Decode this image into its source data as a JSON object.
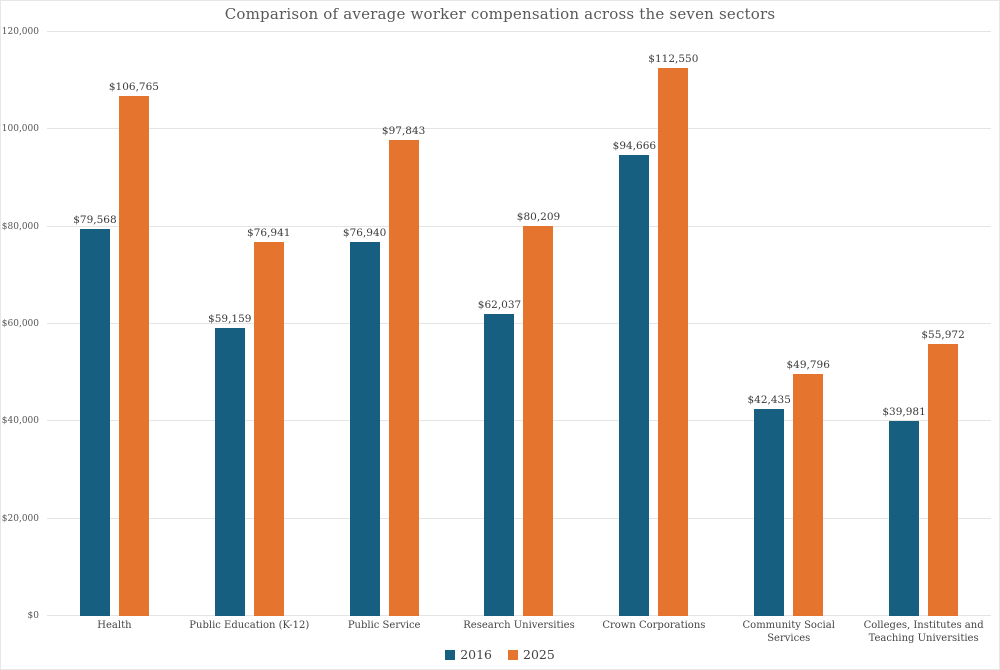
{
  "title": "Comparison of average worker compensation across the seven sectors",
  "colors": {
    "series_2016": "#175f80",
    "series_2025": "#e5742e",
    "gridline": "#e4e4e4",
    "title_text": "#595959",
    "axis_text": "#565656",
    "value_label_text": "#3a3a3a",
    "category_text": "#444444",
    "background": "#ffffff",
    "border": "#e7e7e7"
  },
  "chart_data": {
    "type": "bar",
    "title": "Comparison of average worker compensation across the seven sectors",
    "categories": [
      "Health",
      "Public Education (K-12)",
      "Public Service",
      "Research Universities",
      "Crown Corporations",
      "Community Social Services",
      "Colleges, Institutes and Teaching Universities"
    ],
    "series": [
      {
        "name": "2016",
        "color": "#175f80",
        "values": [
          79568,
          59159,
          76940,
          62037,
          94666,
          42435,
          39981
        ],
        "labels": [
          "$79,568",
          "$59,159",
          "$76,940",
          "$62,037",
          "$94,666",
          "$42,435",
          "$39,981"
        ]
      },
      {
        "name": "2025",
        "color": "#e5742e",
        "values": [
          106765,
          76941,
          97843,
          80209,
          112550,
          49796,
          55972
        ],
        "labels": [
          "$106,765",
          "$76,941",
          "$97,843",
          "$80,209",
          "$112,550",
          "$49,796",
          "$55,972"
        ]
      }
    ],
    "ylabel": "",
    "xlabel": "",
    "ylim": [
      0,
      120000
    ],
    "yticks": [
      {
        "value": 0,
        "label": "$0"
      },
      {
        "value": 20000,
        "label": "$20,000"
      },
      {
        "value": 40000,
        "label": "$40,000"
      },
      {
        "value": 60000,
        "label": "$60,000"
      },
      {
        "value": 80000,
        "label": "$80,000"
      },
      {
        "value": 100000,
        "label": "$100,000"
      },
      {
        "value": 120000,
        "label": "$120,000"
      }
    ],
    "grid": "horizontal",
    "legend_position": "bottom-center",
    "value_labels": "above-bars"
  }
}
